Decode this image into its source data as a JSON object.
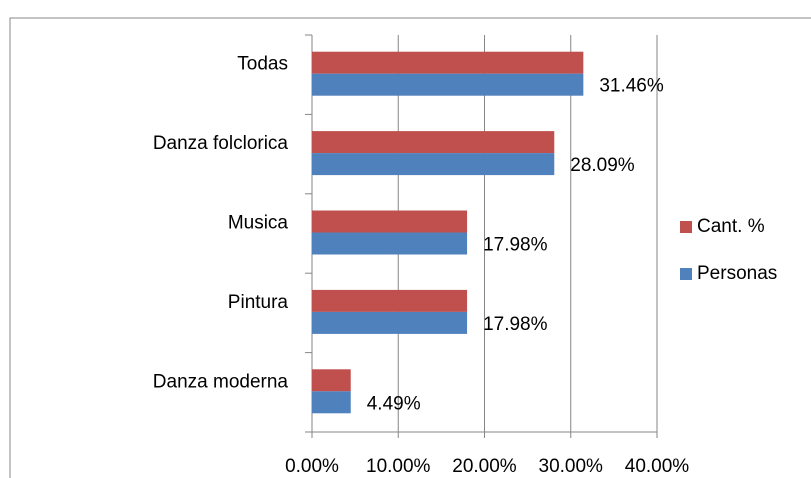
{
  "chart_data": {
    "type": "hbar",
    "categories": [
      "Todas",
      "Danza folclorica",
      "Musica",
      "Pintura",
      "Danza moderna"
    ],
    "series": [
      {
        "name": "Cant. %",
        "color": "#c0504d",
        "values": [
          31.46,
          28.09,
          17.98,
          17.98,
          4.49
        ]
      },
      {
        "name": "Personas",
        "color": "#4f81bd",
        "values": [
          31.46,
          28.09,
          17.98,
          17.98,
          4.49
        ],
        "value_labels": [
          "31.46%",
          "28.09%",
          "17.98%",
          "17.98%",
          "4.49%"
        ]
      }
    ],
    "xlim": [
      0,
      40
    ],
    "xticks": [
      {
        "value": 0,
        "label": "0.00%"
      },
      {
        "value": 10,
        "label": "10.00%"
      },
      {
        "value": 20,
        "label": "20.00%"
      },
      {
        "value": 30,
        "label": "30.00%"
      },
      {
        "value": 40,
        "label": "40.00%"
      }
    ],
    "grid": true,
    "legend": "right"
  }
}
